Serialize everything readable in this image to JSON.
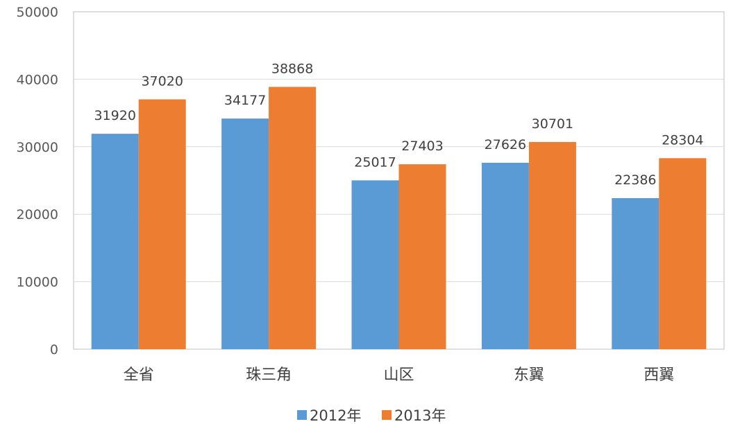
{
  "chart_data": {
    "type": "bar",
    "categories": [
      "全省",
      "珠三角",
      "山区",
      "东翼",
      "西翼"
    ],
    "series": [
      {
        "name": "2012年",
        "values": [
          31920,
          34177,
          25017,
          27626,
          22386
        ],
        "color": "#5b9bd5"
      },
      {
        "name": "2013年",
        "values": [
          37020,
          38868,
          27403,
          30701,
          28304
        ],
        "color": "#ed7d31"
      }
    ],
    "yticks": [
      "0",
      "10000",
      "20000",
      "30000",
      "40000",
      "50000"
    ],
    "ylim": [
      0,
      50000
    ],
    "grid": true,
    "legend_position": "bottom-center",
    "data_labels": true
  }
}
